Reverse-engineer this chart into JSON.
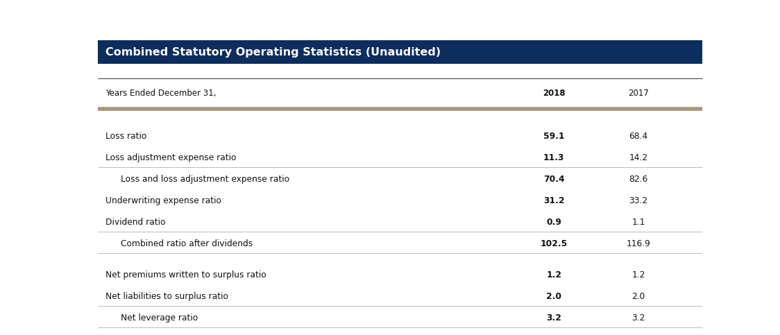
{
  "title": "Combined Statutory Operating Statistics (Unaudited)",
  "header_bg": "#0d2d5e",
  "header_text_color": "#ffffff",
  "col_header_label": "Years Ended December 31,",
  "col_2018": "2018",
  "col_2017": "2017",
  "rows": [
    {
      "label": "Loss ratio",
      "indent": false,
      "val2018": "59.1",
      "val2017": "68.4",
      "bold2018": true,
      "bold2017": false,
      "line_below": false
    },
    {
      "label": "Loss adjustment expense ratio",
      "indent": false,
      "val2018": "11.3",
      "val2017": "14.2",
      "bold2018": true,
      "bold2017": false,
      "line_below": true
    },
    {
      "label": "Loss and loss adjustment expense ratio",
      "indent": true,
      "val2018": "70.4",
      "val2017": "82.6",
      "bold2018": true,
      "bold2017": false,
      "line_below": false
    },
    {
      "label": "Underwriting expense ratio",
      "indent": false,
      "val2018": "31.2",
      "val2017": "33.2",
      "bold2018": true,
      "bold2017": false,
      "line_below": false
    },
    {
      "label": "Dividend ratio",
      "indent": false,
      "val2018": "0.9",
      "val2017": "1.1",
      "bold2018": true,
      "bold2017": false,
      "line_below": true
    },
    {
      "label": "Combined ratio after dividends",
      "indent": true,
      "val2018": "102.5",
      "val2017": "116.9",
      "bold2018": true,
      "bold2017": false,
      "line_below": true
    },
    {
      "label": "Net premiums written to surplus ratio",
      "indent": false,
      "val2018": "1.2",
      "val2017": "1.2",
      "bold2018": true,
      "bold2017": false,
      "line_below": false
    },
    {
      "label": "Net liabilities to surplus ratio",
      "indent": false,
      "val2018": "2.0",
      "val2017": "2.0",
      "bold2018": true,
      "bold2017": false,
      "line_below": true
    },
    {
      "label": "Net leverage ratio",
      "indent": true,
      "val2018": "3.2",
      "val2017": "3.2",
      "bold2018": true,
      "bold2017": false,
      "line_below": false
    }
  ],
  "thin_line_color": "#bbbbbb",
  "tan_line_color": "#a09878",
  "bg_color": "#ffffff",
  "text_color": "#111111"
}
